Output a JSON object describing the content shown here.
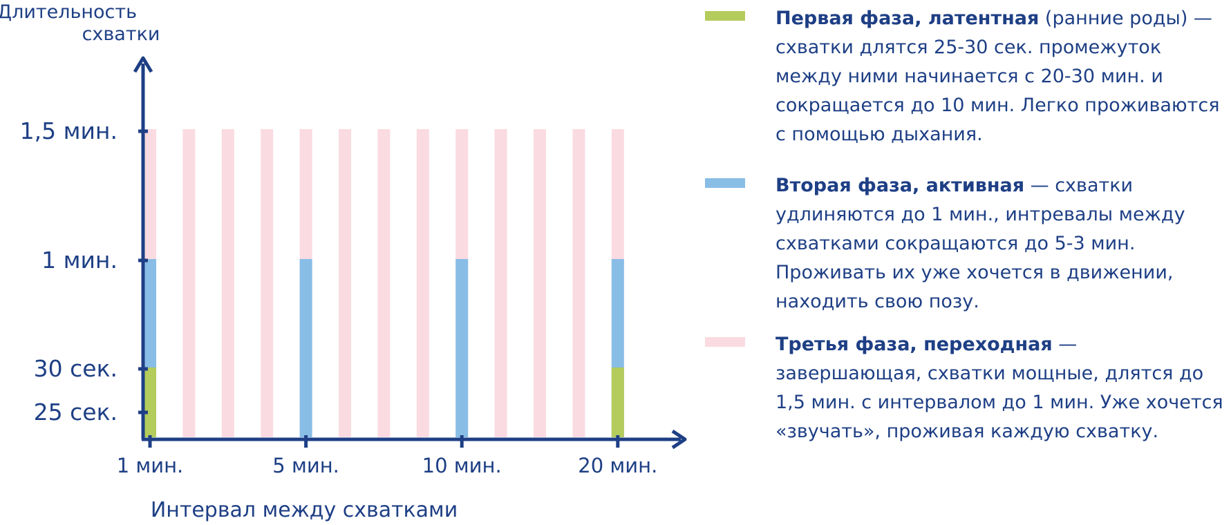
{
  "chart_data": {
    "type": "bar",
    "ylabel": "Длительность схватки",
    "xlabel": "Интервал между схватками",
    "y_ticks": [
      "1,5 мин.",
      "1 мин.",
      "30 сек.",
      "25 сек."
    ],
    "x_ticks": [
      "1 мин.",
      "5 мин.",
      "10 мин.",
      "20 мин."
    ],
    "grid": false,
    "legend_position": "right",
    "colors": {
      "phase1": "#b3cc5c",
      "phase2": "#88bde6",
      "phase3": "#fadbe1",
      "axis": "#1e3f85"
    },
    "columns": [
      {
        "p1": 30,
        "p2": 60,
        "p3": 90
      },
      {
        "p1": 0,
        "p2": 0,
        "p3": 90
      },
      {
        "p1": 0,
        "p2": 0,
        "p3": 90
      },
      {
        "p1": 0,
        "p2": 0,
        "p3": 90
      },
      {
        "p1": 0,
        "p2": 60,
        "p3": 90
      },
      {
        "p1": 0,
        "p2": 0,
        "p3": 90
      },
      {
        "p1": 0,
        "p2": 0,
        "p3": 90
      },
      {
        "p1": 0,
        "p2": 0,
        "p3": 90
      },
      {
        "p1": 0,
        "p2": 60,
        "p3": 90
      },
      {
        "p1": 0,
        "p2": 0,
        "p3": 90
      },
      {
        "p1": 0,
        "p2": 0,
        "p3": 90
      },
      {
        "p1": 0,
        "p2": 0,
        "p3": 90
      },
      {
        "p1": 30,
        "p2": 60,
        "p3": 90
      }
    ],
    "legend": [
      {
        "title": "Первая фаза, латентная",
        "text": " (ранние роды) — схватки длятся 25-30 сек. промежуток между ними начинается с 20-30 мин. и сокращается до 10 мин. Легко проживаются с помощью дыхания."
      },
      {
        "title": "Вторая фаза, активная",
        "text": " — схватки удлиняются до 1 мин., интревалы между схватками сокращаются до 5-3 мин. Проживать их уже хочется в движении, находить свою позу."
      },
      {
        "title": "Третья фаза, переходная",
        "text": " — завершающая, схватки мощные, длятся до 1,5 мин. с интервалом до 1 мин. Уже хочется «звучать», проживая каждую схватку."
      }
    ]
  }
}
